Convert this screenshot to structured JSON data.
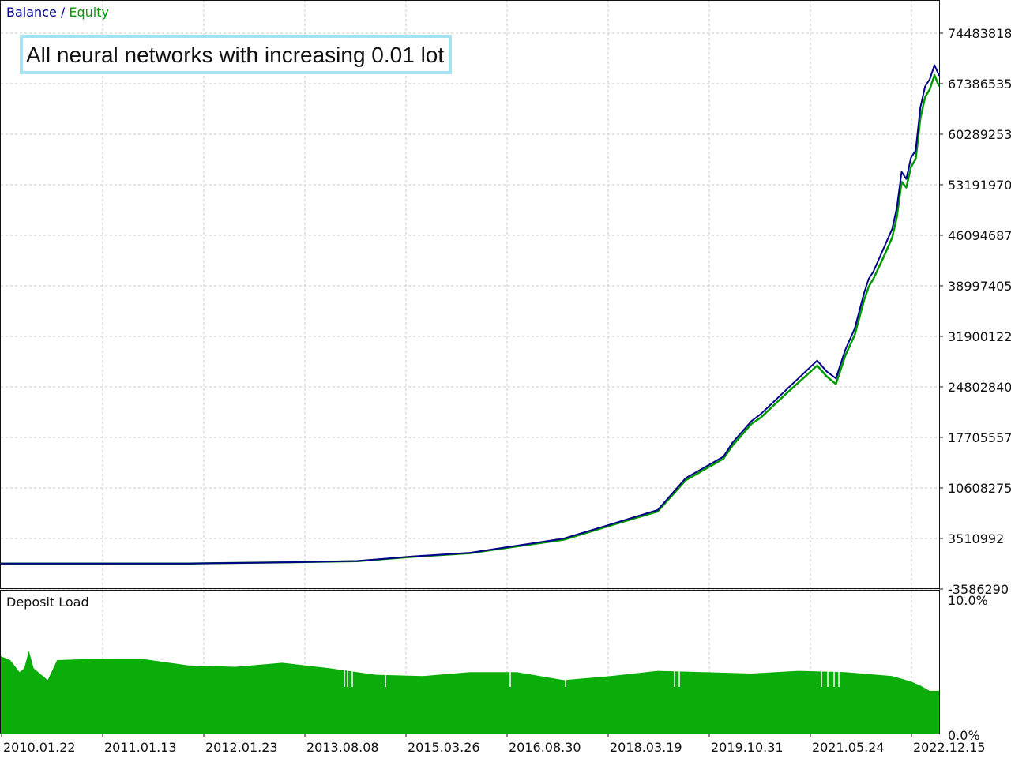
{
  "legend": {
    "balance_label": "Balance",
    "separator": "/",
    "equity_label": "Equity"
  },
  "annotation": "All neural networks with increasing 0.01 lot",
  "colors": {
    "balance": "#00008b",
    "equity": "#009900",
    "deposit_load": "#0aad0a",
    "grid": "#c8c8c8",
    "annotation_border": "#a6e1f4"
  },
  "chart_data": [
    {
      "type": "line",
      "title": "",
      "grid": true,
      "legend_placement": "top-left",
      "y_ticks": [
        "74483818",
        "67386535",
        "60289253",
        "53191970",
        "46094687",
        "38997405",
        "31900122",
        "24802840",
        "17705557",
        "10608275",
        "3510992",
        "-3586290"
      ],
      "ylim": [
        -3586290,
        78032459
      ],
      "x_ticks": [
        "2010.01.22",
        "2011.01.13",
        "2012.01.23",
        "2013.08.08",
        "2015.03.26",
        "2016.08.30",
        "2018.03.19",
        "2019.10.31",
        "2021.05.24",
        "2022.12.15"
      ],
      "x": [
        0,
        0.1,
        0.2,
        0.3,
        0.38,
        0.44,
        0.5,
        0.55,
        0.6,
        0.65,
        0.7,
        0.73,
        0.77,
        0.78,
        0.8,
        0.81,
        0.83,
        0.85,
        0.87,
        0.88,
        0.89,
        0.9,
        0.91,
        0.92,
        0.925,
        0.93,
        0.94,
        0.95,
        0.955,
        0.96,
        0.965,
        0.97,
        0.975,
        0.98,
        0.985,
        0.99,
        0.995,
        1.0
      ],
      "series": [
        {
          "name": "Balance",
          "values": [
            0,
            0,
            0,
            150000,
            350000,
            1000000,
            1500000,
            2500000,
            3500000,
            5500000,
            7500000,
            12000000,
            15000000,
            17000000,
            20000000,
            21000000,
            23500000,
            26000000,
            28500000,
            27000000,
            26000000,
            30000000,
            33000000,
            38000000,
            40000000,
            41000000,
            44000000,
            47000000,
            50000000,
            55000000,
            54000000,
            57000000,
            58000000,
            64000000,
            67000000,
            68000000,
            70000000,
            68500000
          ]
        },
        {
          "name": "Equity",
          "values": [
            0,
            0,
            0,
            150000,
            330000,
            950000,
            1450000,
            2400000,
            3350000,
            5350000,
            7300000,
            11700000,
            14700000,
            16600000,
            19600000,
            20500000,
            23000000,
            25400000,
            27800000,
            26300000,
            25200000,
            29200000,
            32100000,
            37000000,
            38900000,
            40000000,
            42800000,
            45800000,
            48700000,
            53600000,
            52800000,
            55700000,
            56800000,
            62500000,
            65500000,
            66600000,
            68600000,
            67000000
          ]
        }
      ]
    },
    {
      "type": "area",
      "title": "Deposit Load",
      "y_ticks": [
        "10.0%",
        "0.0%"
      ],
      "ylim": [
        0,
        10
      ],
      "x": [
        0,
        0.01,
        0.02,
        0.025,
        0.03,
        0.035,
        0.05,
        0.06,
        0.1,
        0.15,
        0.2,
        0.25,
        0.3,
        0.35,
        0.4,
        0.45,
        0.5,
        0.55,
        0.6,
        0.65,
        0.7,
        0.75,
        0.8,
        0.85,
        0.9,
        0.95,
        0.97,
        0.98,
        0.99,
        1.0
      ],
      "series": [
        {
          "name": "Deposit Load",
          "values": [
            5.8,
            5.5,
            4.6,
            4.9,
            6.2,
            4.9,
            4.0,
            5.5,
            5.6,
            5.6,
            5.1,
            5.0,
            5.3,
            4.9,
            4.4,
            4.3,
            4.6,
            4.6,
            4.0,
            4.3,
            4.7,
            4.6,
            4.5,
            4.7,
            4.6,
            4.3,
            3.9,
            3.6,
            3.2,
            3.2
          ]
        }
      ]
    }
  ]
}
